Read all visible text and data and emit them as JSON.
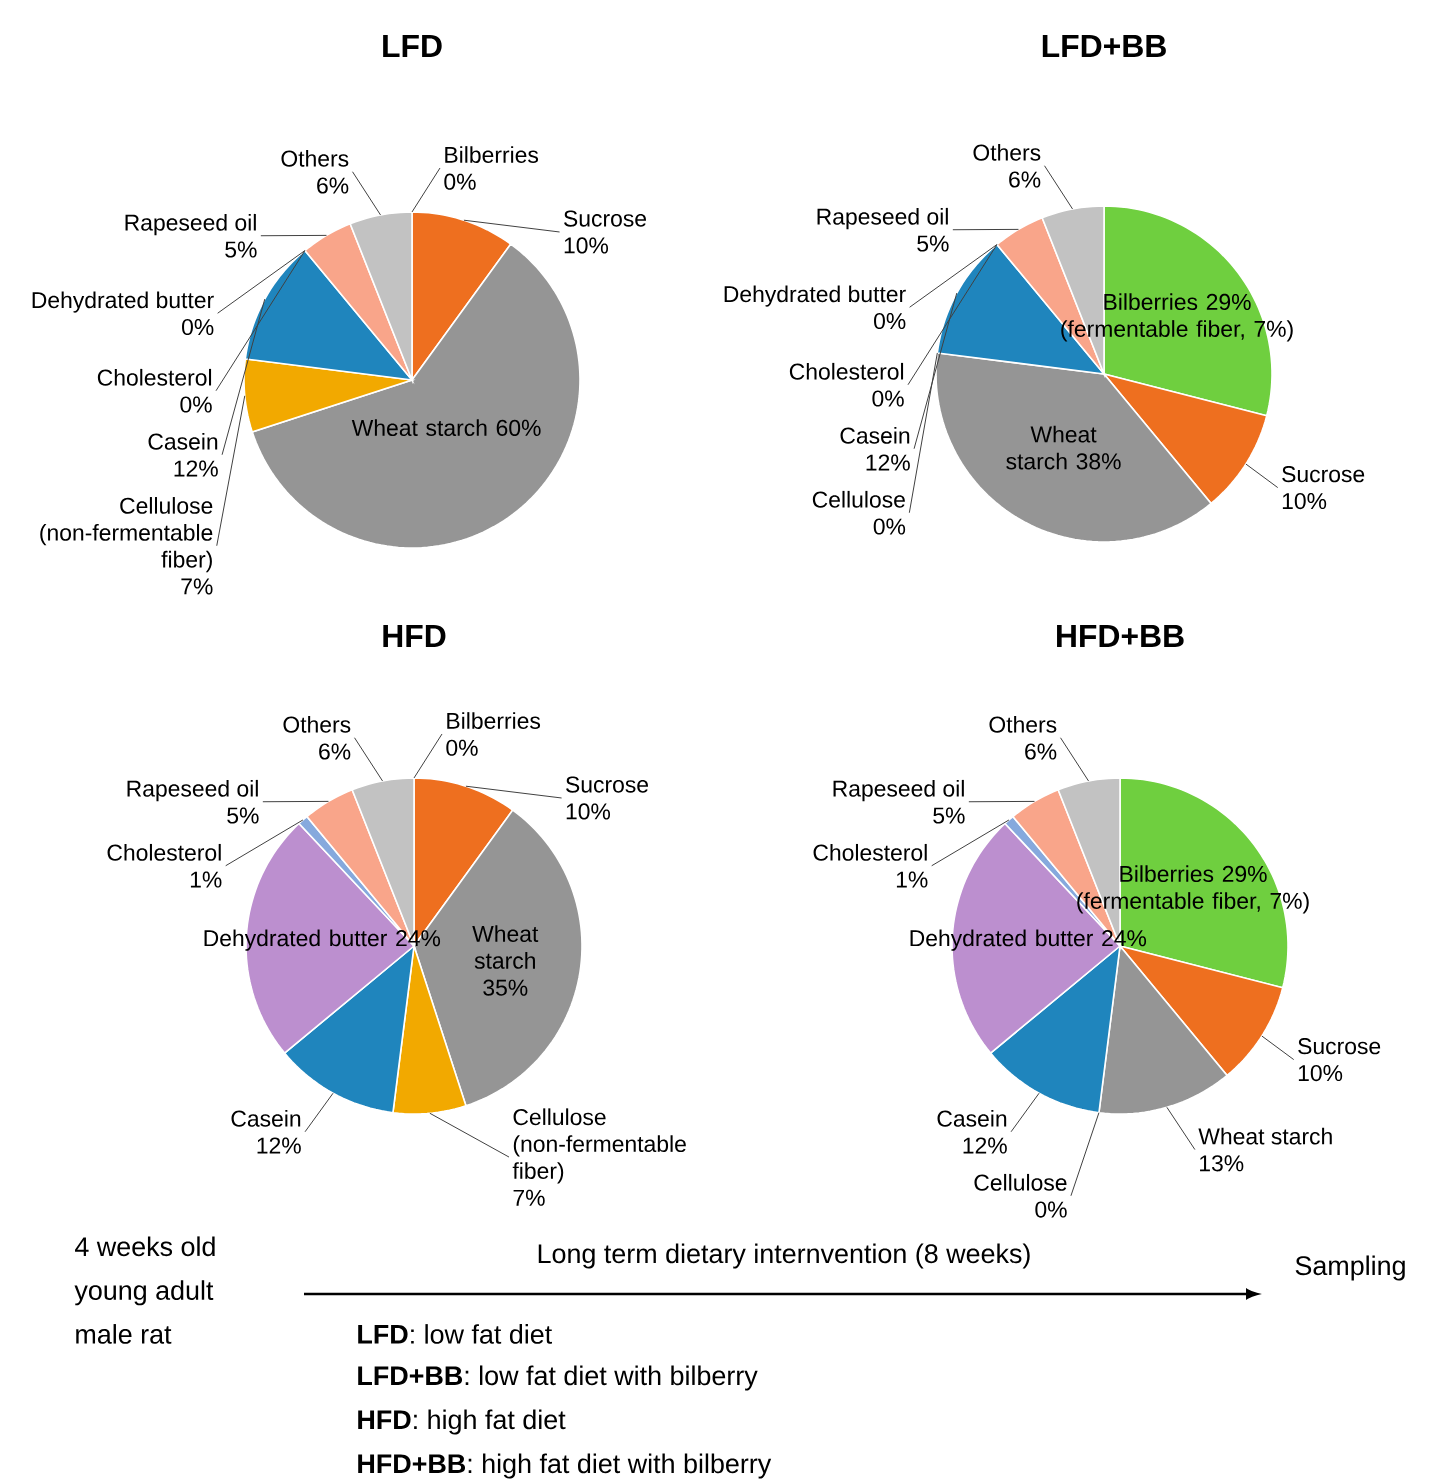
{
  "chart_data": [
    {
      "type": "pie",
      "title": "LFD",
      "categories": [
        "Bilberries",
        "Sucrose",
        "Wheat starch",
        "Cellulose (non-fermentable fiber)",
        "Casein",
        "Dehydrated butter",
        "Cholesterol",
        "Rapeseed oil",
        "Others"
      ],
      "values": [
        0,
        10,
        60,
        7,
        12,
        0,
        0,
        5,
        6
      ],
      "value_labels": [
        "0%",
        "10%",
        "60%",
        "7%",
        "12%",
        "0%",
        "0%",
        "5%",
        "6%"
      ],
      "colors": [
        "#6fcf3f",
        "#ee6f1f",
        "#959595",
        "#f2a900",
        "#1f85bd",
        "#bc8fcf",
        "#86a9dd",
        "#f9a58a",
        "#c2c2c2"
      ]
    },
    {
      "type": "pie",
      "title": "LFD+BB",
      "categories": [
        "Bilberries",
        "Sucrose",
        "Wheat starch",
        "Cellulose",
        "Casein",
        "Dehydrated butter",
        "Cholesterol",
        "Rapeseed oil",
        "Others"
      ],
      "values": [
        29,
        10,
        38,
        0,
        12,
        0,
        0,
        5,
        6
      ],
      "value_labels": [
        "29% (fermentable fiber, 7%)",
        "10%",
        "38%",
        "0%",
        "12%",
        "0%",
        "0%",
        "5%",
        "6%"
      ],
      "colors": [
        "#6fcf3f",
        "#ee6f1f",
        "#959595",
        "#f2a900",
        "#1f85bd",
        "#bc8fcf",
        "#86a9dd",
        "#f9a58a",
        "#c2c2c2"
      ]
    },
    {
      "type": "pie",
      "title": "HFD",
      "categories": [
        "Bilberries",
        "Sucrose",
        "Wheat starch",
        "Cellulose (non-fermentable fiber)",
        "Casein",
        "Dehydrated butter",
        "Cholesterol",
        "Rapeseed oil",
        "Others"
      ],
      "values": [
        0,
        10,
        35,
        7,
        12,
        24,
        1,
        5,
        6
      ],
      "value_labels": [
        "0%",
        "10%",
        "35%",
        "7%",
        "12%",
        "24%",
        "1%",
        "5%",
        "6%"
      ],
      "colors": [
        "#6fcf3f",
        "#ee6f1f",
        "#959595",
        "#f2a900",
        "#1f85bd",
        "#bc8fcf",
        "#86a9dd",
        "#f9a58a",
        "#c2c2c2"
      ]
    },
    {
      "type": "pie",
      "title": "HFD+BB",
      "categories": [
        "Bilberries",
        "Sucrose",
        "Wheat starch",
        "Cellulose",
        "Casein",
        "Dehydrated butter",
        "Cholesterol",
        "Rapeseed oil",
        "Others"
      ],
      "values": [
        29,
        10,
        13,
        0,
        12,
        24,
        1,
        5,
        6
      ],
      "value_labels": [
        "29% (fermentable fiber, 7%)",
        "10%",
        "13%",
        "0%",
        "12%",
        "24%",
        "1%",
        "5%",
        "6%"
      ],
      "colors": [
        "#6fcf3f",
        "#ee6f1f",
        "#959595",
        "#f2a900",
        "#1f85bd",
        "#bc8fcf",
        "#86a9dd",
        "#f9a58a",
        "#c2c2c2"
      ]
    },
    {
      "type": "other",
      "annotations": [
        "4 weeks old young adult male rat",
        "Long term dietary internvention (8 weeks)",
        "Sampling",
        "**LFD**: low fat diet",
        "**LFD+BB**: low fat diet with bilberry",
        "**HFD**: high fat diet",
        "**HFD+BB**: high fat diet with bilberry"
      ]
    }
  ]
}
